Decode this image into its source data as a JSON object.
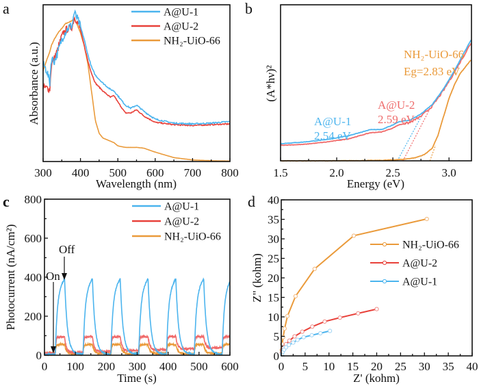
{
  "figure": {
    "colors": {
      "A@U-1": "#4bb4ee",
      "A@U-2": "#e8413a",
      "NH2-UiO-66": "#ea9a3a",
      "A@U-2-light": "#f06a6a"
    }
  },
  "chart_data": [
    {
      "panel": "a",
      "type": "line",
      "title": "",
      "xlabel": "Wavelength (nm)",
      "ylabel": "Absorbance (a.u.)",
      "xlim": [
        300,
        800
      ],
      "ylim": [
        0,
        1
      ],
      "xticks": [
        "300",
        "400",
        "500",
        "600",
        "700",
        "800"
      ],
      "yticks": [],
      "legend": {
        "position": "top-right",
        "entries": [
          "A@U-1",
          "A@U-2",
          "NH₂-UiO-66"
        ]
      },
      "series": [
        {
          "name": "A@U-1",
          "x": [
            300,
            310,
            318,
            322,
            330,
            340,
            350,
            360,
            370,
            378,
            383,
            390,
            400,
            410,
            420,
            430,
            440,
            460,
            480,
            490,
            500,
            520,
            535,
            550,
            570,
            600,
            650,
            700,
            750,
            800
          ],
          "y": [
            0.62,
            0.58,
            0.5,
            0.66,
            0.64,
            0.7,
            0.78,
            0.83,
            0.86,
            0.87,
            0.95,
            0.92,
            0.86,
            0.78,
            0.68,
            0.6,
            0.55,
            0.5,
            0.46,
            0.45,
            0.42,
            0.36,
            0.34,
            0.36,
            0.32,
            0.27,
            0.245,
            0.24,
            0.245,
            0.255
          ]
        },
        {
          "name": "A@U-2",
          "x": [
            300,
            310,
            318,
            322,
            330,
            340,
            350,
            360,
            370,
            378,
            383,
            390,
            400,
            410,
            420,
            430,
            440,
            460,
            480,
            490,
            500,
            520,
            535,
            550,
            570,
            600,
            650,
            700,
            750,
            800
          ],
          "y": [
            0.47,
            0.47,
            0.46,
            0.62,
            0.66,
            0.72,
            0.8,
            0.84,
            0.85,
            0.86,
            0.92,
            0.9,
            0.84,
            0.74,
            0.64,
            0.56,
            0.5,
            0.45,
            0.41,
            0.42,
            0.38,
            0.31,
            0.31,
            0.33,
            0.29,
            0.25,
            0.235,
            0.23,
            0.235,
            0.24
          ]
        },
        {
          "name": "NH₂-UiO-66",
          "x": [
            300,
            310,
            318,
            322,
            330,
            340,
            350,
            360,
            370,
            378,
            383,
            390,
            400,
            410,
            420,
            430,
            440,
            450,
            460,
            480,
            490,
            500,
            520,
            550,
            570,
            600,
            650,
            700,
            750,
            800
          ],
          "y": [
            0.58,
            0.65,
            0.7,
            0.74,
            0.78,
            0.82,
            0.85,
            0.88,
            0.89,
            0.9,
            0.91,
            0.88,
            0.82,
            0.74,
            0.62,
            0.44,
            0.26,
            0.18,
            0.15,
            0.13,
            0.12,
            0.1,
            0.09,
            0.09,
            0.085,
            0.06,
            0.025,
            0.01,
            0.005,
            0.003
          ]
        }
      ]
    },
    {
      "panel": "b",
      "type": "line",
      "title": "",
      "xlabel": "Energy (eV)",
      "ylabel": "(A*hν)²",
      "xlim": [
        1.5,
        3.2
      ],
      "ylim": [
        0,
        1
      ],
      "xticks": [
        "1.5",
        "2.0",
        "2.5",
        "3.0"
      ],
      "yticks": [],
      "annotations": [
        {
          "text": "A@U-1",
          "color_key": "A@U-1"
        },
        {
          "text": "2.54 eV",
          "color_key": "A@U-1"
        },
        {
          "text": "A@U-2",
          "color_key": "A@U-2-light"
        },
        {
          "text": "2.59 eV",
          "color_key": "A@U-2-light"
        },
        {
          "text": "NH₂-UiO-66",
          "color_key": "NH2-UiO-66"
        },
        {
          "text": "Eg=2.83 eV",
          "color_key": "NH2-UiO-66"
        }
      ],
      "band_gaps_eV": {
        "A@U-1": 2.54,
        "A@U-2": 2.59,
        "NH₂-UiO-66": 2.83
      },
      "series": [
        {
          "name": "A@U-1",
          "x": [
            1.5,
            1.7,
            1.9,
            2.1,
            2.2,
            2.3,
            2.4,
            2.5,
            2.55,
            2.65,
            2.75,
            2.85,
            2.95,
            3.05,
            3.2
          ],
          "y": [
            0.11,
            0.12,
            0.135,
            0.16,
            0.18,
            0.2,
            0.2,
            0.23,
            0.25,
            0.26,
            0.3,
            0.36,
            0.46,
            0.58,
            0.78
          ]
        },
        {
          "name": "A@U-2",
          "x": [
            1.5,
            1.7,
            1.9,
            2.1,
            2.2,
            2.3,
            2.4,
            2.5,
            2.55,
            2.65,
            2.75,
            2.85,
            2.95,
            3.05,
            3.2
          ],
          "y": [
            0.1,
            0.105,
            0.12,
            0.14,
            0.16,
            0.18,
            0.185,
            0.21,
            0.23,
            0.245,
            0.285,
            0.35,
            0.45,
            0.57,
            0.76
          ]
        },
        {
          "name": "NH₂-UiO-66",
          "x": [
            1.5,
            2.0,
            2.4,
            2.6,
            2.7,
            2.78,
            2.85,
            2.9,
            2.95,
            3.0,
            3.05,
            3.1,
            3.2
          ],
          "y": [
            0.0,
            0.0,
            0.003,
            0.01,
            0.02,
            0.04,
            0.08,
            0.16,
            0.28,
            0.4,
            0.49,
            0.56,
            0.65
          ]
        }
      ],
      "tangent_lines": [
        {
          "name": "A@U-1",
          "x": [
            2.54,
            2.78
          ],
          "y": [
            0.0,
            0.32
          ]
        },
        {
          "name": "A@U-2",
          "x": [
            2.59,
            2.82
          ],
          "y": [
            0.0,
            0.32
          ]
        },
        {
          "name": "NH₂-UiO-66",
          "x": [
            2.83,
            2.88
          ],
          "y": [
            0.0,
            0.1
          ]
        }
      ]
    },
    {
      "panel": "c",
      "type": "line",
      "title": "",
      "xlabel": "Time (s)",
      "ylabel": "Photocurrent (nA/cm²)",
      "xlim": [
        0,
        600
      ],
      "ylim": [
        0,
        800
      ],
      "xticks": [
        "0",
        "100",
        "200",
        "300",
        "400",
        "500",
        "600"
      ],
      "yticks": [
        "0",
        "200",
        "400",
        "600",
        "800"
      ],
      "legend": {
        "position": "top-right",
        "entries": [
          "A@U-1",
          "A@U-2",
          "NH₂-UiO-66"
        ]
      },
      "annotations": [
        {
          "text": "On"
        },
        {
          "text": "Off"
        }
      ],
      "light_on_times_s": [
        35,
        125,
        215,
        305,
        395,
        485,
        575
      ],
      "light_on_duration_s": 30,
      "series": [
        {
          "name": "A@U-1",
          "peak": 395,
          "baseline": 5
        },
        {
          "name": "A@U-2",
          "peak": 95,
          "baseline": 20
        },
        {
          "name": "NH₂-UiO-66",
          "peak": 55,
          "baseline": 8
        }
      ]
    },
    {
      "panel": "d",
      "type": "line",
      "title": "",
      "xlabel": "Z' (kohm)",
      "ylabel": "Z\" (kohm)",
      "xlim": [
        0,
        40
      ],
      "ylim": [
        0,
        40
      ],
      "xticks": [
        "0",
        "5",
        "10",
        "15",
        "20",
        "25",
        "30",
        "35",
        "40"
      ],
      "yticks": [
        "0",
        "5",
        "10",
        "15",
        "20",
        "25",
        "30",
        "35",
        "40"
      ],
      "legend": {
        "position": "center-right",
        "entries": [
          "NH₂-UiO-66",
          "A@U-2",
          "A@U-1"
        ]
      },
      "series": [
        {
          "name": "NH₂-UiO-66",
          "x": [
            0.1,
            0.2,
            0.4,
            0.7,
            1.3,
            3.0,
            7.0,
            15.2,
            30.5
          ],
          "y": [
            1.5,
            3.0,
            4.8,
            7.0,
            10.2,
            15.3,
            22.3,
            30.8,
            35.1
          ]
        },
        {
          "name": "A@U-2",
          "x": [
            0.1,
            0.2,
            0.5,
            1.0,
            1.7,
            2.8,
            4.4,
            6.5,
            9.1,
            12.3,
            16.1,
            20.0
          ],
          "y": [
            0.8,
            1.4,
            2.2,
            3.0,
            3.9,
            5.0,
            6.2,
            7.5,
            8.8,
            9.8,
            10.9,
            12.0
          ]
        },
        {
          "name": "A@U-1",
          "x": [
            0.1,
            0.3,
            0.6,
            1.0,
            1.6,
            2.5,
            3.4,
            4.7,
            6.4,
            8.2,
            10.2
          ],
          "y": [
            0.4,
            1.0,
            1.6,
            2.2,
            2.8,
            3.4,
            4.1,
            4.8,
            5.3,
            5.8,
            6.4
          ]
        }
      ]
    }
  ]
}
